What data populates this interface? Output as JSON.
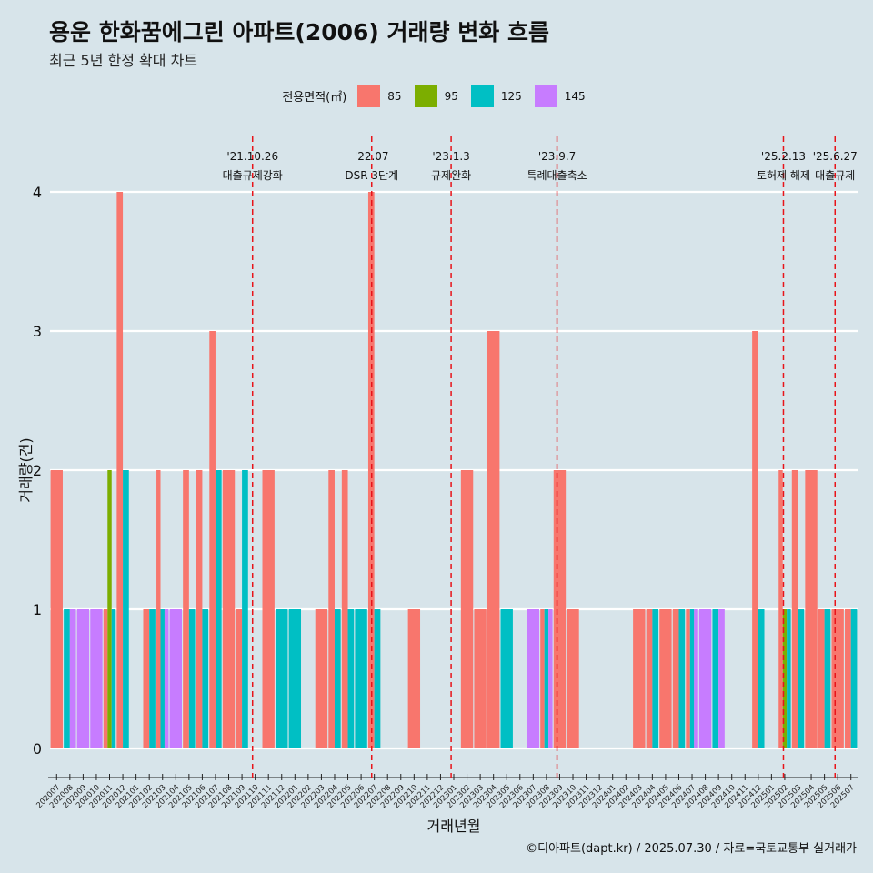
{
  "header": {
    "title": "용운 한화꿈에그린 아파트(2006) 거래량 변화 흐름",
    "subtitle": "최근 5년 한정 확대 차트"
  },
  "legend": {
    "title": "전용면적(㎡)",
    "items": [
      {
        "label": "85",
        "color": "#f8766d"
      },
      {
        "label": "95",
        "color": "#7cae00"
      },
      {
        "label": "125",
        "color": "#00bfc4"
      },
      {
        "label": "145",
        "color": "#c77cff"
      }
    ]
  },
  "caption": "©디아파트(dapt.kr) / 2025.07.30 / 자료=국토교통부 실거래가",
  "chart_data": {
    "type": "bar",
    "xlabel": "거래년월",
    "ylabel": "거래량(건)",
    "ylim": [
      0,
      4
    ],
    "yticks": [
      0,
      1,
      2,
      3,
      4
    ],
    "grid": true,
    "legend_position": "top",
    "categories": [
      "202007",
      "202008",
      "202009",
      "202010",
      "202011",
      "202012",
      "202101",
      "202102",
      "202103",
      "202104",
      "202105",
      "202106",
      "202107",
      "202108",
      "202109",
      "202110",
      "202111",
      "202112",
      "202201",
      "202202",
      "202203",
      "202204",
      "202205",
      "202206",
      "202207",
      "202208",
      "202209",
      "202210",
      "202211",
      "202212",
      "202301",
      "202302",
      "202303",
      "202304",
      "202305",
      "202306",
      "202307",
      "202308",
      "202309",
      "202310",
      "202311",
      "202312",
      "202401",
      "202402",
      "202403",
      "202404",
      "202405",
      "202406",
      "202407",
      "202408",
      "202409",
      "202410",
      "202411",
      "202412",
      "202501",
      "202502",
      "202503",
      "202504",
      "202505",
      "202506",
      "202507"
    ],
    "series": [
      {
        "name": "85",
        "color": "#f8766d",
        "values": [
          2,
          0,
          0,
          0,
          1,
          4,
          0,
          1,
          2,
          0,
          2,
          2,
          3,
          2,
          1,
          0,
          2,
          0,
          0,
          0,
          1,
          2,
          2,
          0,
          4,
          0,
          0,
          1,
          0,
          0,
          0,
          2,
          1,
          3,
          0,
          0,
          0,
          1,
          2,
          1,
          0,
          0,
          0,
          0,
          1,
          1,
          1,
          1,
          1,
          0,
          0,
          0,
          0,
          3,
          0,
          2,
          2,
          2,
          1,
          1,
          1
        ]
      },
      {
        "name": "95",
        "color": "#7cae00",
        "values": [
          0,
          0,
          0,
          0,
          2,
          0,
          0,
          0,
          0,
          0,
          0,
          0,
          0,
          0,
          0,
          0,
          0,
          0,
          0,
          0,
          0,
          0,
          0,
          0,
          0,
          0,
          0,
          0,
          0,
          0,
          0,
          0,
          0,
          0,
          0,
          0,
          0,
          0,
          0,
          0,
          0,
          0,
          0,
          0,
          0,
          0,
          0,
          0,
          0,
          0,
          0,
          0,
          0,
          0,
          0,
          1,
          0,
          0,
          0,
          0,
          0
        ]
      },
      {
        "name": "125",
        "color": "#00bfc4",
        "values": [
          0,
          1,
          0,
          0,
          1,
          2,
          0,
          1,
          1,
          0,
          1,
          1,
          2,
          0,
          2,
          0,
          0,
          1,
          1,
          0,
          0,
          1,
          1,
          1,
          1,
          0,
          0,
          0,
          0,
          0,
          0,
          0,
          0,
          0,
          1,
          0,
          0,
          1,
          0,
          0,
          0,
          0,
          0,
          0,
          0,
          1,
          0,
          1,
          1,
          0,
          1,
          0,
          0,
          1,
          0,
          1,
          1,
          0,
          1,
          0,
          1
        ]
      },
      {
        "name": "145",
        "color": "#c77cff",
        "values": [
          0,
          1,
          1,
          1,
          0,
          0,
          0,
          0,
          1,
          1,
          0,
          0,
          0,
          0,
          0,
          0,
          0,
          0,
          0,
          0,
          0,
          0,
          0,
          0,
          0,
          0,
          0,
          0,
          0,
          0,
          0,
          0,
          0,
          0,
          0,
          0,
          1,
          1,
          0,
          0,
          0,
          0,
          0,
          0,
          0,
          0,
          0,
          0,
          1,
          1,
          1,
          0,
          0,
          0,
          0,
          0,
          0,
          0,
          0,
          0,
          0
        ]
      }
    ],
    "annotations": [
      {
        "x": 15.3,
        "date": "'21.10.26",
        "text": "대출규제강화"
      },
      {
        "x": 24.3,
        "date": "'22.07",
        "text": "DSR 3단계"
      },
      {
        "x": 30.3,
        "date": "'23.1.3",
        "text": "규제완화"
      },
      {
        "x": 38.3,
        "date": "'23.9.7",
        "text": "특례대출축소"
      },
      {
        "x": 55.4,
        "date": "'25.2.13",
        "text": "토허제 해제"
      },
      {
        "x": 59.3,
        "date": "'25.6.27",
        "text": "대출규제"
      }
    ]
  }
}
